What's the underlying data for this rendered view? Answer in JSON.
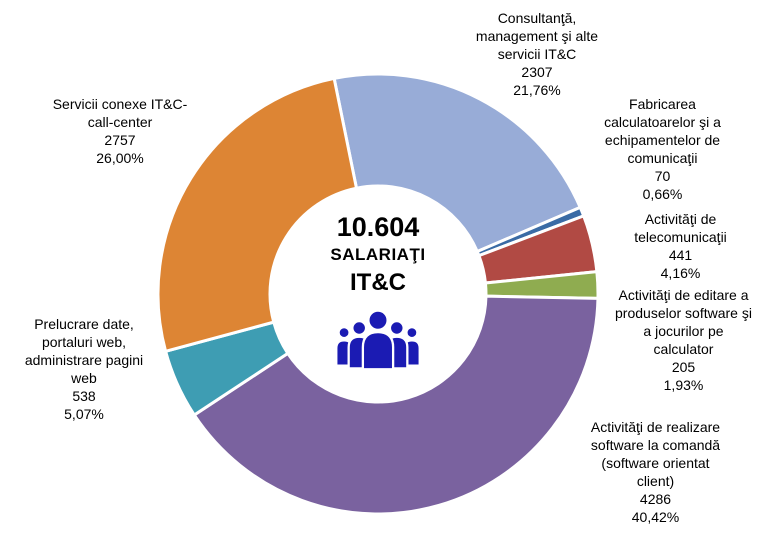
{
  "chart_data": {
    "type": "pie",
    "subtype": "donut",
    "start_angle_deg": -11.5,
    "total": 10604,
    "legend": "none",
    "center": {
      "total": "10.604",
      "subtitle": "SALARIAŢI",
      "category": "IT&C",
      "icon": "people-group-icon",
      "icon_color": "#1B1BB3"
    },
    "slices": [
      {
        "id": "consultanta",
        "name": "Consultanţă, management şi alte servicii IT&C",
        "value": 2307,
        "pct": "21,76%",
        "color": "#98ACD7",
        "label": "Consultanţă,\nmanagement şi alte\nservicii IT&C\n2307\n21,76%"
      },
      {
        "id": "fabricarea",
        "name": "Fabricarea calculatoarelor şi a echipamentelor de comunicaţii",
        "value": 70,
        "pct": "0,66%",
        "color": "#3A6BA5",
        "label": "Fabricarea\ncalculatoarelor şi a\nechipamentelor de\ncomunicaţii\n70\n0,66%"
      },
      {
        "id": "telecomunicatii",
        "name": "Activităţi de telecomunicaţii",
        "value": 441,
        "pct": "4,16%",
        "color": "#B14A44",
        "label": "Activităţi de\ntelecomunicaţii\n441\n4,16%"
      },
      {
        "id": "editare-software",
        "name": "Activităţi de editare a produselor software şi a jocurilor pe calculator",
        "value": 205,
        "pct": "1,93%",
        "color": "#8FAC50",
        "label": "Activităţi de editare a\nproduselor software şi\na jocurilor pe\ncalculator\n205\n1,93%"
      },
      {
        "id": "realizare-software",
        "name": "Activităţi de realizare software la comandă (software orientat client)",
        "value": 4286,
        "pct": "40,42%",
        "color": "#7A629F",
        "label": "Activităţi de realizare\nsoftware la comandă\n(software orientat\nclient)\n4286\n40,42%"
      },
      {
        "id": "prelucrare-date",
        "name": "Prelucrare date, portaluri web, administrare pagini web",
        "value": 538,
        "pct": "5,07%",
        "color": "#3E9DB3",
        "label": "Prelucrare date,\nportaluri web,\nadministrare pagini\nweb\n538\n5,07%"
      },
      {
        "id": "servicii-conexe",
        "name": "Servicii conexe IT&C- call-center",
        "value": 2757,
        "pct": "26,00%",
        "color": "#DD8534",
        "label": "Servicii conexe IT&C-\ncall-center\n2757\n26,00%"
      }
    ]
  }
}
